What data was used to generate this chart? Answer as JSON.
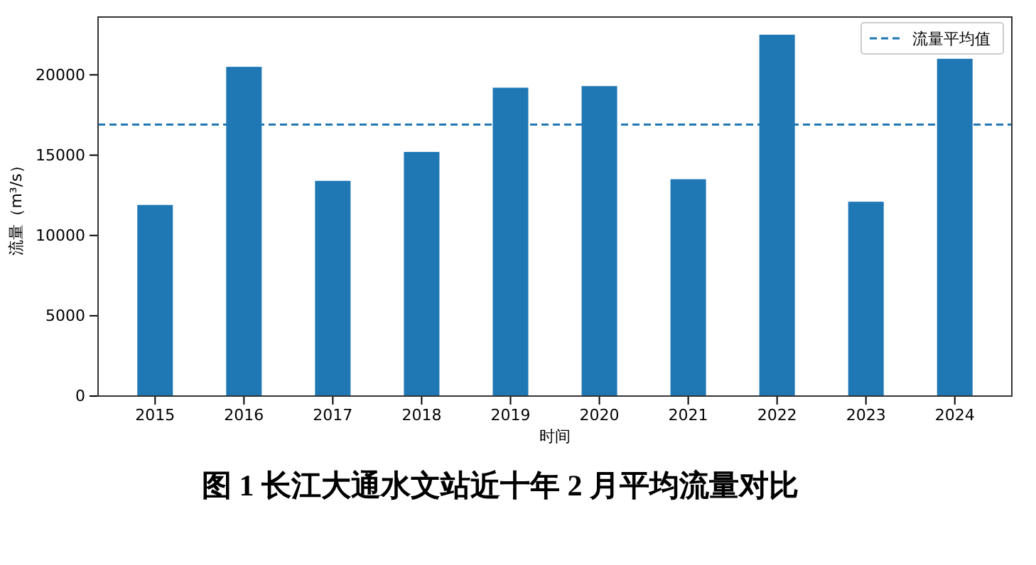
{
  "chart_data": {
    "type": "bar",
    "title": "图 1  长江大通水文站近十年 2 月平均流量对比",
    "xlabel": "时间",
    "ylabel": "流量（m³/s）",
    "categories": [
      "2015",
      "2016",
      "2017",
      "2018",
      "2019",
      "2020",
      "2021",
      "2022",
      "2023",
      "2024"
    ],
    "values": [
      11900,
      20500,
      13400,
      15200,
      19200,
      19300,
      13500,
      22500,
      12100,
      21000
    ],
    "color": "#1f77b4",
    "ylim": [
      0,
      23600
    ],
    "yticks": [
      0,
      5000,
      10000,
      15000,
      20000
    ],
    "ref_lines": [
      {
        "axis": "y",
        "value": 16900,
        "label": "流量平均值",
        "color": "#1f77b4",
        "line_style": "dashed"
      }
    ],
    "legend": "top right"
  }
}
